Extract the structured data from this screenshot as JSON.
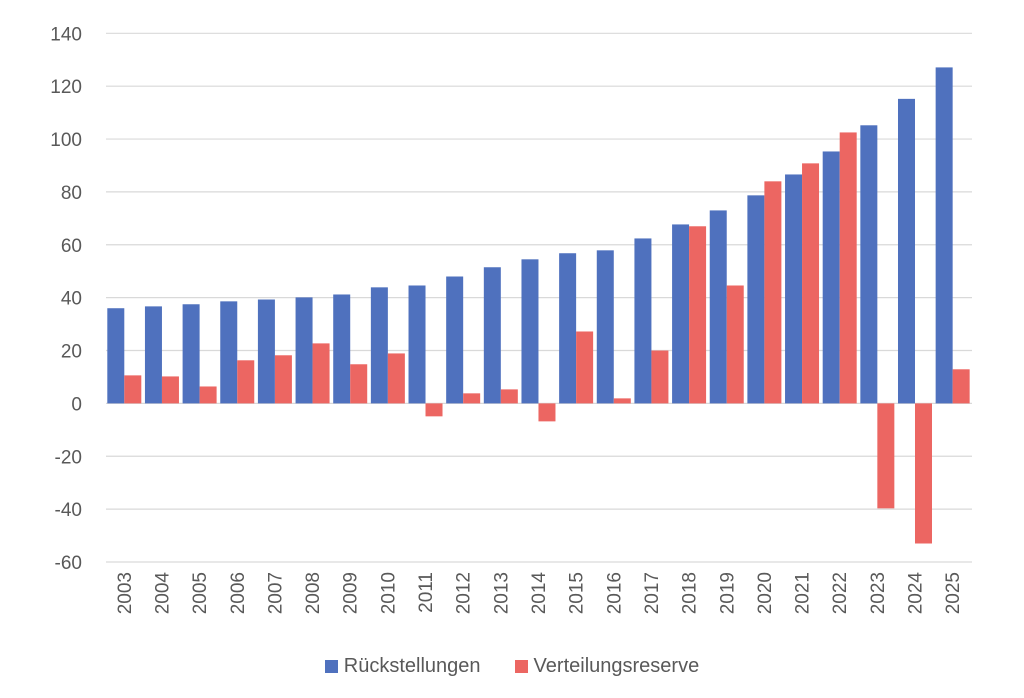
{
  "chart_data": {
    "type": "bar",
    "title": "",
    "xlabel": "",
    "ylabel": "",
    "ylim": [
      -60,
      140
    ],
    "yticks": [
      -60,
      -40,
      -20,
      0,
      20,
      40,
      60,
      80,
      100,
      120,
      140
    ],
    "grid": true,
    "legend_position": "bottom",
    "categories": [
      "2003",
      "2004",
      "2005",
      "2006",
      "2007",
      "2008",
      "2009",
      "2010",
      "2011",
      "2012",
      "2013",
      "2014",
      "2015",
      "2016",
      "2017",
      "2018",
      "2019",
      "2020",
      "2021",
      "2022",
      "2023",
      "2024",
      "2025"
    ],
    "series": [
      {
        "name": "Rückstellungen",
        "color": "#4f71be",
        "values": [
          36,
          36.7,
          37.5,
          38.6,
          39.3,
          40.1,
          41.2,
          43.9,
          44.6,
          48,
          51.5,
          54.5,
          56.8,
          57.9,
          62.4,
          67.7,
          73,
          78.7,
          86.6,
          95.3,
          105.2,
          115.2,
          127.1
        ]
      },
      {
        "name": "Verteilungsreserve",
        "color": "#ec6662",
        "values": [
          10.6,
          10.2,
          6.4,
          16.3,
          18.2,
          22.7,
          14.8,
          18.9,
          -4.9,
          3.8,
          5.3,
          -6.8,
          27.2,
          1.9,
          20,
          67,
          44.6,
          84,
          90.8,
          102.5,
          -39.7,
          -53,
          12.9
        ]
      }
    ]
  }
}
